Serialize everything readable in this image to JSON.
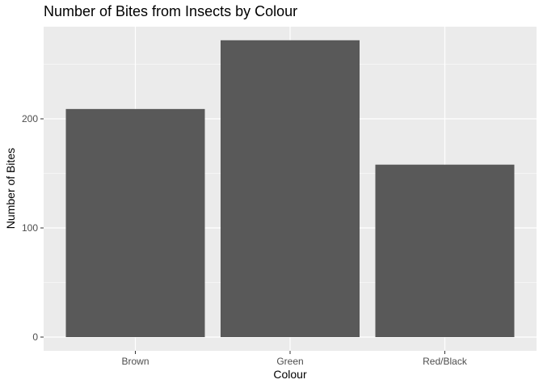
{
  "chart_data": {
    "type": "bar",
    "title": "Number of Bites from Insects by Colour",
    "xlabel": "Colour",
    "ylabel": "Number of Bites",
    "categories": [
      "Brown",
      "Green",
      "Red/Black"
    ],
    "values": [
      209,
      272,
      158
    ],
    "ylim": [
      0,
      286
    ],
    "yticks": [
      0,
      100,
      200
    ],
    "grid": true,
    "legend": "none"
  },
  "colors": {
    "panel_background": "#ebebeb",
    "gridline": "#ffffff",
    "bar_fill": "#595959",
    "tick_text": "#4d4d4d",
    "text": "#000000"
  }
}
